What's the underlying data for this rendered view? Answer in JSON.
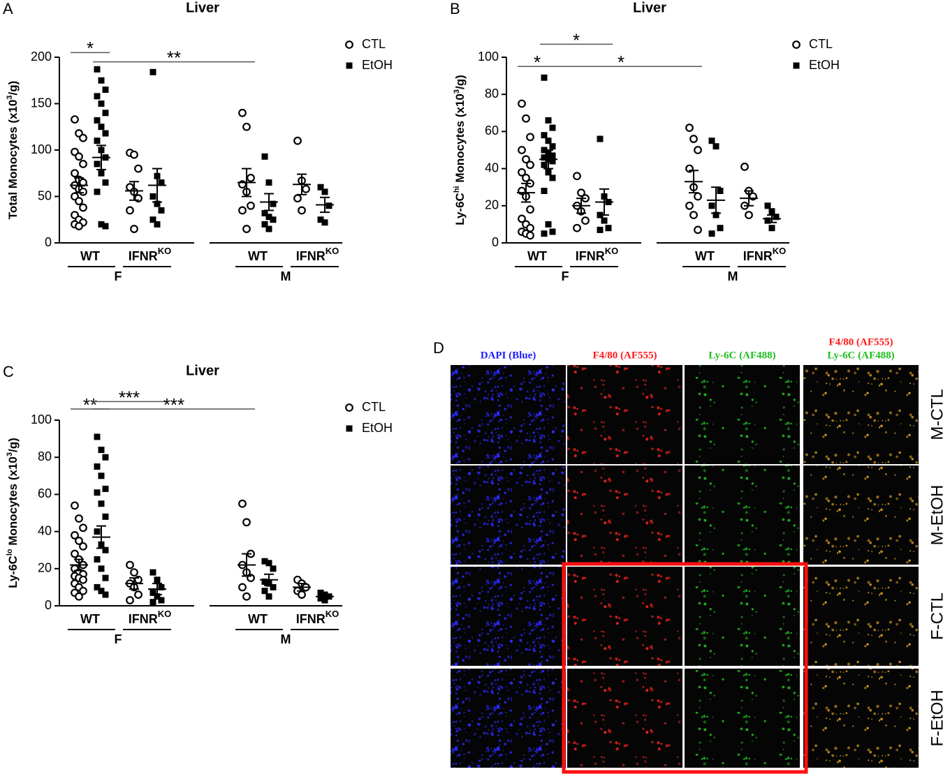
{
  "chart_data": [
    {
      "type": "strip",
      "label": "A",
      "title": "Liver",
      "ylabel": [
        {
          "text": "Total Monocytes (x10"
        },
        {
          "text": "3",
          "sup": true
        },
        {
          "text": "/g)"
        }
      ],
      "ylim": [
        0,
        200
      ],
      "yticks": [
        0,
        50,
        100,
        150,
        200
      ],
      "legend": "upper right",
      "groups": [
        {
          "name": "F",
          "subgroups": [
            {
              "name": "WT"
            },
            {
              "name": "IFNR",
              "sup": "KO"
            }
          ]
        },
        {
          "name": "M",
          "subgroups": [
            {
              "name": "WT"
            },
            {
              "name": "IFNR",
              "sup": "KO"
            }
          ]
        }
      ],
      "series": [
        {
          "name": "CTL",
          "marker": "open-circle",
          "color": "#000000",
          "values": [
            [
              133,
              118,
              113,
              98,
              93,
              85,
              75,
              68,
              65,
              62,
              58,
              55,
              50,
              45,
              38,
              30,
              25,
              22,
              20,
              18
            ],
            [
              97,
              95,
              80,
              60,
              55,
              48,
              35,
              15
            ],
            [
              140,
              125,
              70,
              63,
              55,
              40,
              35,
              15
            ],
            [
              110,
              67,
              58,
              48,
              35
            ]
          ],
          "means": [
            62,
            56,
            65,
            63
          ],
          "sems": [
            8,
            10,
            15,
            11
          ]
        },
        {
          "name": "EtOH",
          "marker": "filled-square",
          "color": "#000000",
          "values": [
            [
              187,
              175,
              165,
              158,
              150,
              140,
              132,
              125,
              118,
              110,
              100,
              92,
              85,
              75,
              65,
              55,
              20,
              18
            ],
            [
              184,
              72,
              65,
              50,
              42,
              35,
              25,
              20
            ],
            [
              93,
              65,
              42,
              32,
              28,
              25,
              20,
              15
            ],
            [
              60,
              55,
              40,
              25,
              22
            ]
          ],
          "means": [
            92,
            62,
            44,
            41
          ],
          "sems": [
            13,
            18,
            9,
            8
          ]
        }
      ],
      "annotations": [
        {
          "text": "*",
          "x": [
            0,
            1
          ],
          "y": 205
        },
        {
          "text": "**",
          "x": [
            1,
            4
          ],
          "y": 195
        }
      ]
    },
    {
      "type": "strip",
      "label": "B",
      "title": "Liver",
      "ylabel": [
        {
          "text": "Ly-6C"
        },
        {
          "text": "hi",
          "sup": true
        },
        {
          "text": " Monocytes (x10"
        },
        {
          "text": "3",
          "sup": true
        },
        {
          "text": "/g)"
        }
      ],
      "ylim": [
        0,
        100
      ],
      "yticks": [
        0,
        20,
        40,
        60,
        80,
        100
      ],
      "legend": "upper right",
      "groups": [
        {
          "name": "F",
          "subgroups": [
            {
              "name": "WT"
            },
            {
              "name": "IFNR",
              "sup": "KO"
            }
          ]
        },
        {
          "name": "M",
          "subgroups": [
            {
              "name": "WT"
            },
            {
              "name": "IFNR",
              "sup": "KO"
            }
          ]
        }
      ],
      "series": [
        {
          "name": "CTL",
          "marker": "open-circle",
          "color": "#000000",
          "values": [
            [
              75,
              67,
              57,
              50,
              45,
              42,
              38,
              35,
              32,
              28,
              25,
              18,
              13,
              10,
              8,
              6,
              5,
              4
            ],
            [
              36,
              27,
              24,
              20,
              17,
              12,
              8
            ],
            [
              62,
              56,
              50,
              40,
              30,
              25,
              20,
              15,
              7
            ],
            [
              41,
              28,
              25,
              20,
              15
            ]
          ],
          "means": [
            27,
            20,
            33,
            24
          ],
          "sems": [
            5,
            4,
            6,
            4
          ]
        },
        {
          "name": "EtOH",
          "marker": "filled-square",
          "color": "#000000",
          "values": [
            [
              89,
              66,
              62,
              58,
              55,
              52,
              50,
              48,
              47,
              46,
              45,
              44,
              42,
              38,
              35,
              28,
              10,
              6,
              5
            ],
            [
              56,
              25,
              22,
              15,
              12,
              8,
              7
            ],
            [
              55,
              52,
              28,
              20,
              15,
              8,
              5
            ],
            [
              20,
              17,
              14,
              12,
              8
            ]
          ],
          "means": [
            45,
            22,
            23,
            13
          ],
          "sems": [
            5,
            7,
            7,
            2
          ]
        }
      ],
      "annotations": [
        {
          "text": "*",
          "x": [
            0,
            1
          ],
          "y": 95
        },
        {
          "text": "*",
          "x": [
            1,
            3
          ],
          "y": 107
        },
        {
          "text": "*",
          "x": [
            1,
            4
          ],
          "y": 95
        }
      ]
    },
    {
      "type": "strip",
      "label": "C",
      "title": "Liver",
      "ylabel": [
        {
          "text": "Ly-6C"
        },
        {
          "text": "lo",
          "sup": true
        },
        {
          "text": " Monocytes (x10"
        },
        {
          "text": "3",
          "sup": true
        },
        {
          "text": "/g)"
        }
      ],
      "ylim": [
        0,
        100
      ],
      "yticks": [
        0,
        20,
        40,
        60,
        80,
        100
      ],
      "legend": "upper right",
      "groups": [
        {
          "name": "F",
          "subgroups": [
            {
              "name": "WT"
            },
            {
              "name": "IFNR",
              "sup": "KO"
            }
          ]
        },
        {
          "name": "M",
          "subgroups": [
            {
              "name": "WT"
            },
            {
              "name": "IFNR",
              "sup": "KO"
            }
          ]
        }
      ],
      "series": [
        {
          "name": "CTL",
          "marker": "open-circle",
          "color": "#000000",
          "values": [
            [
              54,
              47,
              42,
              38,
              35,
              32,
              28,
              25,
              22,
              20,
              18,
              17,
              16,
              15,
              14,
              12,
              10,
              8,
              7,
              5
            ],
            [
              22,
              18,
              14,
              12,
              10,
              6,
              3
            ],
            [
              55,
              45,
              28,
              22,
              18,
              15,
              10,
              5
            ],
            [
              14,
              12,
              10,
              8,
              6
            ]
          ],
          "means": [
            22,
            12,
            22,
            10
          ],
          "sems": [
            3,
            3,
            6,
            2
          ]
        },
        {
          "name": "EtOH",
          "marker": "filled-square",
          "color": "#000000",
          "values": [
            [
              91,
              84,
              80,
              75,
              70,
              63,
              61,
              55,
              48,
              40,
              33,
              30,
              25,
              20,
              15,
              10,
              8,
              6
            ],
            [
              18,
              14,
              10,
              7,
              5,
              3,
              2
            ],
            [
              24,
              23,
              20,
              13,
              12,
              10,
              8,
              5
            ],
            [
              7,
              6,
              5,
              4,
              3
            ]
          ],
          "means": [
            37,
            9,
            14,
            5
          ],
          "sems": [
            6,
            3,
            3,
            1
          ]
        }
      ],
      "annotations": [
        {
          "text": "**",
          "x": [
            0,
            1
          ],
          "y": 106
        },
        {
          "text": "***",
          "x": [
            1,
            3
          ],
          "y": 110
        },
        {
          "text": "***",
          "x": [
            1,
            4
          ],
          "y": 106
        }
      ]
    }
  ],
  "panel_d": {
    "label": "D",
    "columns": [
      [
        {
          "text": "DAPI (Blue)",
          "color": "#1a1aff"
        }
      ],
      [
        {
          "text": "F4/80 (AF555)",
          "color": "#ff1a1a"
        }
      ],
      [
        {
          "text": "Ly-6C (AF488)",
          "color": "#1fbf1f"
        }
      ],
      [
        {
          "text": "F4/80 (AF555)",
          "color": "#ff1a1a"
        },
        {
          "text": "Ly-6C (AF488)",
          "color": "#1fbf1f"
        }
      ]
    ],
    "rows": [
      "M-CTL",
      "M-EtOH",
      "F-CTL",
      "F-EtOH"
    ]
  }
}
